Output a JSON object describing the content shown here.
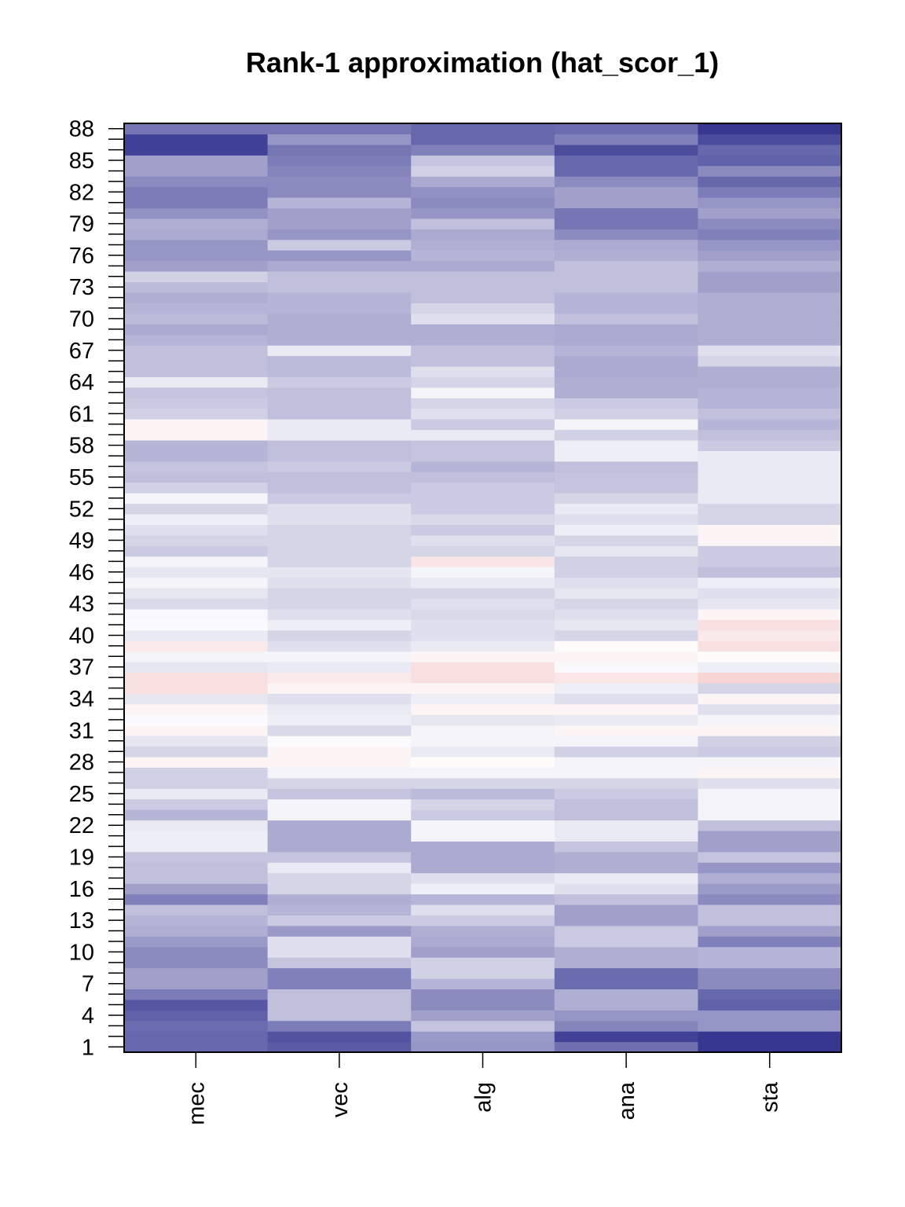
{
  "chart_data": {
    "type": "heatmap",
    "title": "Rank-1 approximation (hat_scor_1)",
    "xlabel": "",
    "ylabel": "",
    "columns": [
      "mec",
      "vec",
      "alg",
      "ana",
      "sta"
    ],
    "rows_range": [
      1,
      88
    ],
    "y_tick_labels": [
      "1",
      "4",
      "7",
      "10",
      "13",
      "16",
      "19",
      "22",
      "25",
      "28",
      "31",
      "34",
      "37",
      "40",
      "43",
      "46",
      "49",
      "52",
      "55",
      "58",
      "61",
      "64",
      "67",
      "70",
      "73",
      "76",
      "79",
      "82",
      "85",
      "88"
    ],
    "color_scale": {
      "low": "#2c2c8c",
      "mid": "#ffffff",
      "high": "#d32f2f",
      "range": [
        -1,
        1
      ]
    },
    "grid": false,
    "values_note": "Values are relative intensities in [-1, 1] per row (row 1 to row 88), read from cell colors.",
    "values": [
      [
        -0.72,
        -0.78,
        -0.5,
        -0.68,
        -0.95
      ],
      [
        -0.72,
        -0.82,
        -0.48,
        -0.9,
        -0.95
      ],
      [
        -0.7,
        -0.62,
        -0.28,
        -0.58,
        -0.5
      ],
      [
        -0.75,
        -0.3,
        -0.45,
        -0.5,
        -0.5
      ],
      [
        -0.8,
        -0.3,
        -0.55,
        -0.38,
        -0.75
      ],
      [
        -0.62,
        -0.3,
        -0.55,
        -0.38,
        -0.72
      ],
      [
        -0.45,
        -0.6,
        -0.35,
        -0.7,
        -0.55
      ],
      [
        -0.45,
        -0.6,
        -0.22,
        -0.7,
        -0.55
      ],
      [
        -0.55,
        -0.28,
        -0.22,
        -0.38,
        -0.35
      ],
      [
        -0.55,
        -0.15,
        -0.45,
        -0.38,
        -0.35
      ],
      [
        -0.48,
        -0.15,
        -0.4,
        -0.25,
        -0.6
      ],
      [
        -0.38,
        -0.48,
        -0.38,
        -0.25,
        -0.45
      ],
      [
        -0.35,
        -0.25,
        -0.25,
        -0.45,
        -0.3
      ],
      [
        -0.3,
        -0.35,
        -0.15,
        -0.45,
        -0.3
      ],
      [
        -0.6,
        -0.38,
        -0.35,
        -0.3,
        -0.55
      ],
      [
        -0.45,
        -0.2,
        -0.08,
        -0.15,
        -0.48
      ],
      [
        -0.3,
        -0.2,
        -0.15,
        -0.1,
        -0.38
      ],
      [
        -0.3,
        -0.1,
        -0.4,
        -0.38,
        -0.5
      ],
      [
        -0.28,
        -0.28,
        -0.4,
        -0.38,
        -0.28
      ],
      [
        -0.08,
        -0.4,
        -0.4,
        -0.28,
        -0.45
      ],
      [
        -0.08,
        -0.4,
        -0.05,
        -0.1,
        -0.45
      ],
      [
        -0.1,
        -0.4,
        -0.05,
        -0.1,
        -0.3
      ],
      [
        -0.35,
        -0.05,
        -0.25,
        -0.3,
        -0.05
      ],
      [
        -0.25,
        -0.05,
        -0.2,
        -0.3,
        -0.05
      ],
      [
        -0.1,
        -0.28,
        -0.32,
        -0.25,
        -0.05
      ],
      [
        -0.22,
        -0.2,
        -0.2,
        -0.2,
        -0.15
      ],
      [
        -0.22,
        -0.05,
        -0.05,
        -0.05,
        0.05
      ],
      [
        0.05,
        0.05,
        0.02,
        -0.05,
        -0.05
      ],
      [
        -0.2,
        0.05,
        -0.1,
        -0.22,
        -0.25
      ],
      [
        -0.12,
        -0.02,
        -0.05,
        -0.05,
        -0.22
      ],
      [
        0.05,
        -0.18,
        -0.05,
        0.05,
        0.05
      ],
      [
        -0.02,
        -0.08,
        -0.12,
        -0.1,
        -0.05
      ],
      [
        0.05,
        -0.1,
        0.05,
        0.05,
        -0.15
      ],
      [
        -0.12,
        -0.15,
        -0.08,
        -0.15,
        0.05
      ],
      [
        0.15,
        0.05,
        0.05,
        -0.08,
        -0.2
      ],
      [
        0.15,
        0.1,
        0.15,
        0.12,
        0.2
      ],
      [
        -0.12,
        -0.1,
        0.15,
        -0.03,
        -0.08
      ],
      [
        -0.05,
        -0.05,
        0.05,
        0.05,
        0.02
      ],
      [
        0.1,
        -0.15,
        -0.1,
        0.02,
        0.15
      ],
      [
        -0.1,
        -0.2,
        -0.15,
        -0.2,
        0.1
      ],
      [
        -0.02,
        -0.08,
        -0.15,
        -0.12,
        0.15
      ],
      [
        -0.03,
        -0.15,
        -0.18,
        -0.15,
        0.05
      ],
      [
        -0.18,
        -0.2,
        -0.15,
        -0.2,
        -0.12
      ],
      [
        -0.12,
        -0.2,
        -0.2,
        -0.12,
        -0.15
      ],
      [
        -0.05,
        -0.15,
        -0.1,
        -0.15,
        -0.08
      ],
      [
        -0.12,
        -0.12,
        -0.05,
        -0.22,
        -0.3
      ],
      [
        -0.05,
        -0.2,
        0.12,
        -0.22,
        -0.25
      ],
      [
        -0.25,
        -0.2,
        -0.2,
        -0.12,
        -0.25
      ],
      [
        -0.2,
        -0.2,
        -0.15,
        -0.2,
        0.05
      ],
      [
        -0.15,
        -0.2,
        -0.25,
        -0.08,
        0.05
      ],
      [
        -0.08,
        -0.15,
        -0.18,
        -0.15,
        -0.2
      ],
      [
        -0.2,
        -0.15,
        -0.25,
        -0.1,
        -0.2
      ],
      [
        -0.05,
        -0.25,
        -0.25,
        -0.2,
        -0.1
      ],
      [
        -0.22,
        -0.3,
        -0.25,
        -0.28,
        -0.1
      ],
      [
        -0.3,
        -0.3,
        -0.3,
        -0.28,
        -0.1
      ],
      [
        -0.28,
        -0.25,
        -0.35,
        -0.3,
        -0.1
      ],
      [
        -0.35,
        -0.3,
        -0.28,
        -0.08,
        -0.1
      ],
      [
        -0.35,
        -0.3,
        -0.28,
        -0.08,
        -0.25
      ],
      [
        0.05,
        -0.1,
        -0.1,
        -0.22,
        -0.3
      ],
      [
        0.05,
        -0.1,
        -0.25,
        -0.05,
        -0.35
      ],
      [
        -0.22,
        -0.3,
        -0.15,
        -0.22,
        -0.3
      ],
      [
        -0.25,
        -0.3,
        -0.2,
        -0.25,
        -0.35
      ],
      [
        -0.28,
        -0.3,
        -0.05,
        -0.38,
        -0.35
      ],
      [
        -0.1,
        -0.25,
        -0.2,
        -0.38,
        -0.38
      ],
      [
        -0.3,
        -0.32,
        -0.15,
        -0.4,
        -0.38
      ],
      [
        -0.3,
        -0.32,
        -0.3,
        -0.4,
        -0.2
      ],
      [
        -0.3,
        -0.1,
        -0.3,
        -0.35,
        -0.15
      ],
      [
        -0.35,
        -0.38,
        -0.38,
        -0.4,
        -0.38
      ],
      [
        -0.4,
        -0.38,
        -0.38,
        -0.4,
        -0.38
      ],
      [
        -0.32,
        -0.38,
        -0.15,
        -0.3,
        -0.38
      ],
      [
        -0.35,
        -0.35,
        -0.2,
        -0.35,
        -0.38
      ],
      [
        -0.38,
        -0.35,
        -0.3,
        -0.35,
        -0.38
      ],
      [
        -0.32,
        -0.3,
        -0.3,
        -0.3,
        -0.45
      ],
      [
        -0.22,
        -0.3,
        -0.3,
        -0.3,
        -0.45
      ],
      [
        -0.45,
        -0.4,
        -0.4,
        -0.3,
        -0.38
      ],
      [
        -0.5,
        -0.5,
        -0.35,
        -0.38,
        -0.45
      ],
      [
        -0.5,
        -0.25,
        -0.38,
        -0.4,
        -0.5
      ],
      [
        -0.4,
        -0.5,
        -0.4,
        -0.55,
        -0.6
      ],
      [
        -0.38,
        -0.45,
        -0.3,
        -0.65,
        -0.55
      ],
      [
        -0.52,
        -0.45,
        -0.5,
        -0.65,
        -0.45
      ],
      [
        -0.62,
        -0.35,
        -0.55,
        -0.45,
        -0.5
      ],
      [
        -0.62,
        -0.55,
        -0.52,
        -0.45,
        -0.62
      ],
      [
        -0.55,
        -0.55,
        -0.4,
        -0.55,
        -0.72
      ],
      [
        -0.45,
        -0.58,
        -0.22,
        -0.72,
        -0.55
      ],
      [
        -0.45,
        -0.62,
        -0.28,
        -0.72,
        -0.75
      ],
      [
        -0.9,
        -0.65,
        -0.6,
        -0.85,
        -0.72
      ],
      [
        -0.9,
        -0.5,
        -0.72,
        -0.6,
        -0.85
      ],
      [
        -0.65,
        -0.65,
        -0.72,
        -0.7,
        -0.95
      ]
    ]
  }
}
